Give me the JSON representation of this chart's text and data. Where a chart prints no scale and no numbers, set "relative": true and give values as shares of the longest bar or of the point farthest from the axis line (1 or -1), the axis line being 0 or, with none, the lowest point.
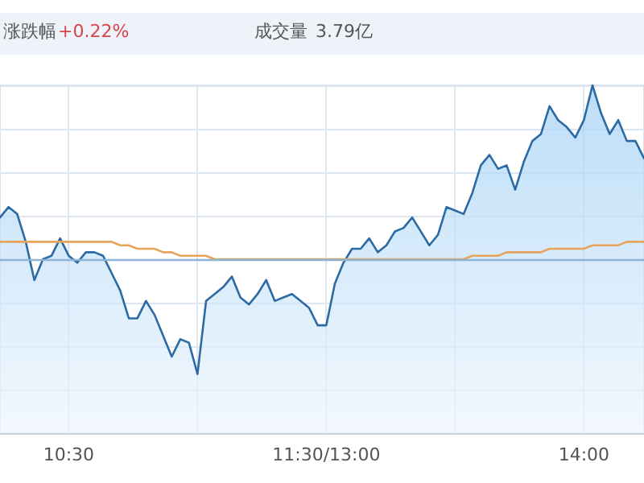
{
  "chart_data": {
    "type": "area",
    "annotations": [
      "涨跌幅",
      "+0.22%",
      "成交量",
      "3.79亿"
    ],
    "relative": true,
    "categories": [
      null,
      null,
      null,
      null,
      null,
      null,
      null,
      null,
      "10:30",
      null,
      null,
      null,
      null,
      null,
      null,
      null,
      null,
      null,
      null,
      null,
      null,
      null,
      null,
      null,
      null,
      null,
      null,
      null,
      null,
      null,
      null,
      null,
      null,
      null,
      null,
      null,
      null,
      null,
      "11:30/13:00",
      null,
      null,
      null,
      null,
      null,
      null,
      null,
      null,
      null,
      null,
      null,
      null,
      null,
      null,
      null,
      null,
      null,
      null,
      null,
      null,
      null,
      null,
      null,
      null,
      null,
      null,
      null,
      null,
      null,
      "14:00",
      null,
      null,
      null,
      null,
      null,
      null,
      null
    ],
    "grid": true,
    "marker": "none",
    "line_style": "solid",
    "ref_lines": [
      {
        "axis": "y",
        "value": 0.5,
        "label": null,
        "color": "#8fb3d3"
      }
    ],
    "series": [
      {
        "color": "#2b6aa3",
        "values": [
          0.62,
          0.65,
          0.63,
          0.55,
          0.44,
          0.5,
          0.51,
          0.56,
          0.51,
          0.49,
          0.52,
          0.52,
          0.51,
          0.46,
          0.41,
          0.33,
          0.33,
          0.38,
          0.34,
          0.28,
          0.22,
          0.27,
          0.26,
          0.17,
          0.38,
          0.4,
          0.42,
          0.45,
          0.39,
          0.37,
          0.4,
          0.44,
          0.38,
          0.39,
          0.4,
          0.38,
          0.36,
          0.31,
          0.31,
          0.43,
          0.49,
          0.53,
          0.53,
          0.56,
          0.52,
          0.54,
          0.58,
          0.59,
          0.62,
          0.58,
          0.54,
          0.57,
          0.65,
          0.64,
          0.63,
          0.69,
          0.77,
          0.8,
          0.76,
          0.77,
          0.7,
          0.78,
          0.84,
          0.86,
          0.94,
          0.9,
          0.88,
          0.85,
          0.9,
          1,
          0.92,
          0.86,
          0.9,
          0.84,
          0.84,
          0.79
        ]
      },
      {
        "type": "line",
        "color": "#e8a45c",
        "values": [
          0.55,
          0.55,
          0.55,
          0.55,
          0.55,
          0.55,
          0.55,
          0.55,
          0.55,
          0.55,
          0.55,
          0.55,
          0.55,
          0.55,
          0.54,
          0.54,
          0.53,
          0.53,
          0.53,
          0.52,
          0.52,
          0.51,
          0.51,
          0.51,
          0.51,
          0.5,
          0.5,
          0.5,
          0.5,
          0.5,
          0.5,
          0.5,
          0.5,
          0.5,
          0.5,
          0.5,
          0.5,
          0.5,
          0.5,
          0.5,
          0.5,
          0.5,
          0.5,
          0.5,
          0.5,
          0.5,
          0.5,
          0.5,
          0.5,
          0.5,
          0.5,
          0.5,
          0.5,
          0.5,
          0.5,
          0.51,
          0.51,
          0.51,
          0.51,
          0.52,
          0.52,
          0.52,
          0.52,
          0.52,
          0.53,
          0.53,
          0.53,
          0.53,
          0.53,
          0.54,
          0.54,
          0.54,
          0.54,
          0.55,
          0.55,
          0.55
        ]
      }
    ]
  }
}
